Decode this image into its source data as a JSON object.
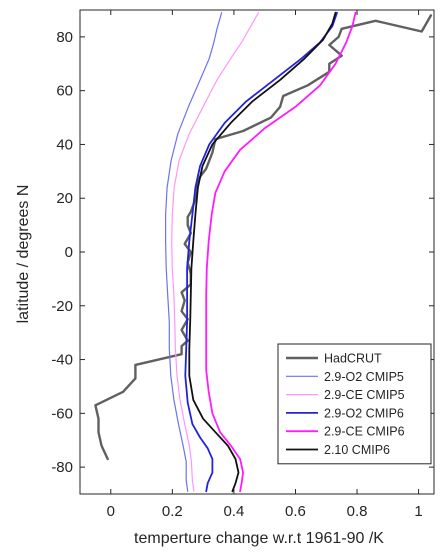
{
  "chart_data": {
    "type": "line",
    "xlabel": "temperture change  w.r.t 1961-90 /K",
    "ylabel": "latitude / degrees N",
    "xlim": [
      -0.1,
      1.05
    ],
    "ylim": [
      -90,
      90
    ],
    "xticks": [
      0,
      0.2,
      0.4,
      0.6,
      0.8,
      1
    ],
    "xtick_labels": [
      "0",
      "0.2",
      "0.4",
      "0.6",
      "0.8",
      "1"
    ],
    "yticks": [
      -80,
      -60,
      -40,
      -20,
      0,
      20,
      40,
      60,
      80
    ],
    "ytick_labels": [
      "-80",
      "-60",
      "-40",
      "-20",
      "0",
      "20",
      "40",
      "60",
      "80"
    ],
    "grid": false,
    "legend_position": "bottom-right",
    "series": [
      {
        "name": "HadCRUT",
        "color": "#606060",
        "width": 2.4,
        "points": [
          [
            -0.01,
            -77
          ],
          [
            -0.03,
            -72
          ],
          [
            -0.04,
            -67
          ],
          [
            -0.04,
            -62
          ],
          [
            -0.05,
            -57
          ],
          [
            0.04,
            -52
          ],
          [
            0.08,
            -47
          ],
          [
            0.08,
            -42
          ],
          [
            0.23,
            -38
          ],
          [
            0.23,
            -35
          ],
          [
            0.25,
            -33
          ],
          [
            0.23,
            -29
          ],
          [
            0.25,
            -25
          ],
          [
            0.23,
            -22
          ],
          [
            0.24,
            -18
          ],
          [
            0.23,
            -15
          ],
          [
            0.26,
            -12
          ],
          [
            0.26,
            -8
          ],
          [
            0.25,
            -4
          ],
          [
            0.26,
            0
          ],
          [
            0.24,
            3
          ],
          [
            0.26,
            7
          ],
          [
            0.25,
            10
          ],
          [
            0.25,
            13
          ],
          [
            0.26,
            15
          ],
          [
            0.27,
            18
          ],
          [
            0.28,
            22
          ],
          [
            0.28,
            25
          ],
          [
            0.29,
            28
          ],
          [
            0.31,
            31
          ],
          [
            0.32,
            34
          ],
          [
            0.33,
            37
          ],
          [
            0.34,
            42
          ],
          [
            0.43,
            45
          ],
          [
            0.52,
            50
          ],
          [
            0.55,
            54
          ],
          [
            0.56,
            58
          ],
          [
            0.64,
            62
          ],
          [
            0.71,
            67
          ],
          [
            0.71,
            70
          ],
          [
            0.75,
            73
          ],
          [
            0.71,
            77
          ],
          [
            0.74,
            80
          ],
          [
            0.75,
            83
          ],
          [
            0.86,
            86
          ],
          [
            1.01,
            82
          ],
          [
            1.04,
            88
          ]
        ]
      },
      {
        "name": "2.9-O2 CMIP5",
        "color": "#6b73ee",
        "width": 1.2,
        "points": [
          [
            0.25,
            -89
          ],
          [
            0.245,
            -85
          ],
          [
            0.245,
            -78
          ],
          [
            0.235,
            -72
          ],
          [
            0.22,
            -64
          ],
          [
            0.205,
            -55
          ],
          [
            0.195,
            -46
          ],
          [
            0.19,
            -36
          ],
          [
            0.19,
            -26
          ],
          [
            0.185,
            -16
          ],
          [
            0.18,
            -6
          ],
          [
            0.178,
            4
          ],
          [
            0.178,
            14
          ],
          [
            0.183,
            24
          ],
          [
            0.196,
            34
          ],
          [
            0.218,
            44
          ],
          [
            0.252,
            54
          ],
          [
            0.29,
            64
          ],
          [
            0.32,
            72
          ],
          [
            0.335,
            78
          ],
          [
            0.345,
            83
          ],
          [
            0.355,
            87
          ],
          [
            0.36,
            89
          ]
        ]
      },
      {
        "name": "2.9-CE CMIP5",
        "color": "#ff96ff",
        "width": 1.2,
        "points": [
          [
            0.27,
            -89
          ],
          [
            0.265,
            -85
          ],
          [
            0.262,
            -78
          ],
          [
            0.255,
            -72
          ],
          [
            0.24,
            -64
          ],
          [
            0.225,
            -55
          ],
          [
            0.215,
            -46
          ],
          [
            0.21,
            -36
          ],
          [
            0.208,
            -26
          ],
          [
            0.205,
            -16
          ],
          [
            0.2,
            -6
          ],
          [
            0.198,
            4
          ],
          [
            0.2,
            14
          ],
          [
            0.206,
            24
          ],
          [
            0.222,
            34
          ],
          [
            0.255,
            44
          ],
          [
            0.3,
            54
          ],
          [
            0.345,
            64
          ],
          [
            0.39,
            72
          ],
          [
            0.425,
            78
          ],
          [
            0.45,
            83
          ],
          [
            0.47,
            87
          ],
          [
            0.48,
            89
          ]
        ]
      },
      {
        "name": "2.9-O2 CMIP6",
        "color": "#2323dc",
        "width": 1.8,
        "points": [
          [
            0.31,
            -89
          ],
          [
            0.315,
            -86
          ],
          [
            0.33,
            -82
          ],
          [
            0.33,
            -77
          ],
          [
            0.315,
            -73
          ],
          [
            0.29,
            -69
          ],
          [
            0.265,
            -64
          ],
          [
            0.25,
            -56
          ],
          [
            0.242,
            -46
          ],
          [
            0.245,
            -36
          ],
          [
            0.248,
            -26
          ],
          [
            0.248,
            -16
          ],
          [
            0.248,
            -6
          ],
          [
            0.255,
            4
          ],
          [
            0.265,
            14
          ],
          [
            0.275,
            24
          ],
          [
            0.29,
            32
          ],
          [
            0.32,
            40
          ],
          [
            0.37,
            48
          ],
          [
            0.44,
            56
          ],
          [
            0.53,
            64
          ],
          [
            0.62,
            72
          ],
          [
            0.68,
            78
          ],
          [
            0.72,
            84
          ],
          [
            0.735,
            89
          ]
        ]
      },
      {
        "name": "2.9-CE CMIP6",
        "color": "#ff1cff",
        "width": 1.8,
        "points": [
          [
            0.42,
            -89
          ],
          [
            0.425,
            -86
          ],
          [
            0.43,
            -82
          ],
          [
            0.42,
            -77
          ],
          [
            0.39,
            -72
          ],
          [
            0.355,
            -67
          ],
          [
            0.33,
            -60
          ],
          [
            0.318,
            -52
          ],
          [
            0.31,
            -44
          ],
          [
            0.31,
            -36
          ],
          [
            0.31,
            -26
          ],
          [
            0.31,
            -16
          ],
          [
            0.312,
            -6
          ],
          [
            0.318,
            4
          ],
          [
            0.328,
            14
          ],
          [
            0.34,
            22
          ],
          [
            0.37,
            30
          ],
          [
            0.42,
            38
          ],
          [
            0.5,
            46
          ],
          [
            0.6,
            54
          ],
          [
            0.68,
            62
          ],
          [
            0.73,
            70
          ],
          [
            0.765,
            78
          ],
          [
            0.785,
            84
          ],
          [
            0.795,
            89
          ]
        ]
      },
      {
        "name": "2.10 CMIP6",
        "color": "#111111",
        "width": 1.8,
        "points": [
          [
            0.395,
            -89
          ],
          [
            0.405,
            -86
          ],
          [
            0.415,
            -82
          ],
          [
            0.405,
            -77
          ],
          [
            0.38,
            -72
          ],
          [
            0.34,
            -67
          ],
          [
            0.3,
            -62
          ],
          [
            0.268,
            -55
          ],
          [
            0.255,
            -46
          ],
          [
            0.255,
            -36
          ],
          [
            0.258,
            -26
          ],
          [
            0.26,
            -16
          ],
          [
            0.262,
            -6
          ],
          [
            0.268,
            4
          ],
          [
            0.275,
            14
          ],
          [
            0.283,
            24
          ],
          [
            0.298,
            32
          ],
          [
            0.33,
            40
          ],
          [
            0.39,
            48
          ],
          [
            0.46,
            56
          ],
          [
            0.55,
            64
          ],
          [
            0.63,
            72
          ],
          [
            0.69,
            79
          ],
          [
            0.72,
            85
          ],
          [
            0.73,
            89
          ]
        ]
      }
    ]
  }
}
